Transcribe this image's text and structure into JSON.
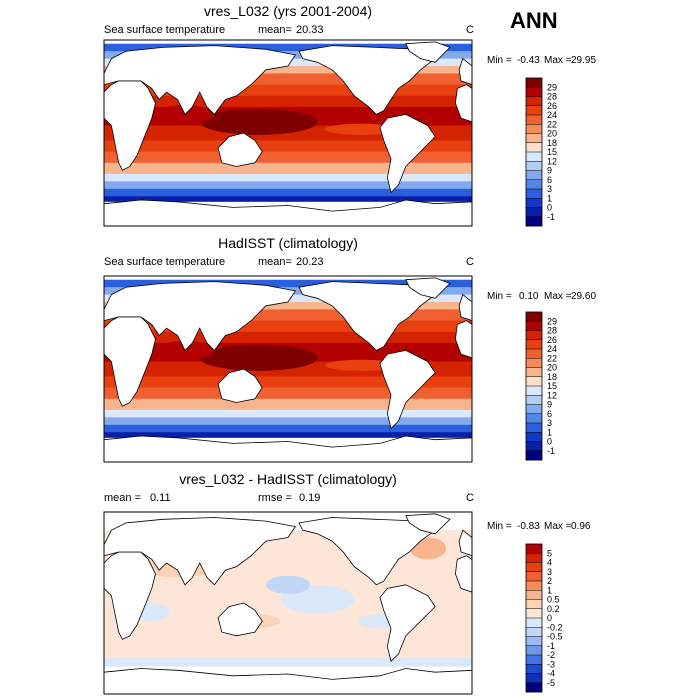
{
  "season": "ANN",
  "panels": [
    {
      "title": "vres_L032 (yrs 2001-2004)",
      "left_label": "Sea surface temperature",
      "mean_label": "mean=",
      "mean_value": "20.33",
      "units": "C",
      "min_label": "Min =",
      "min_value": "-0.43",
      "max_label": "Max =",
      "max_value": "29.95",
      "levels": [
        "29",
        "28",
        "26",
        "24",
        "22",
        "20",
        "18",
        "15",
        "12",
        "9",
        "6",
        "3",
        "1",
        "0",
        "-1"
      ],
      "colors": [
        "#7f0000",
        "#b30000",
        "#d52200",
        "#e8400f",
        "#f06030",
        "#f58a5c",
        "#f8b48c",
        "#fbe0cc",
        "#dbe8fa",
        "#b3cdf5",
        "#84aaee",
        "#5485e6",
        "#2a5fdd",
        "#1238c9",
        "#0a1fa8",
        "#000080"
      ]
    },
    {
      "title": "HadISST (climatology)",
      "left_label": "Sea surface temperature",
      "mean_label": "mean=",
      "mean_value": "20.23",
      "units": "C",
      "min_label": "Min =",
      "min_value": "0.10",
      "max_label": "Max =",
      "max_value": "29.60",
      "levels": [
        "29",
        "28",
        "26",
        "24",
        "22",
        "20",
        "18",
        "15",
        "12",
        "9",
        "6",
        "3",
        "1",
        "0",
        "-1"
      ],
      "colors": [
        "#7f0000",
        "#b30000",
        "#d52200",
        "#e8400f",
        "#f06030",
        "#f58a5c",
        "#f8b48c",
        "#fbe0cc",
        "#dbe8fa",
        "#b3cdf5",
        "#84aaee",
        "#5485e6",
        "#2a5fdd",
        "#1238c9",
        "#0a1fa8",
        "#000080"
      ]
    },
    {
      "title": "vres_L032 - HadISST (climatology)",
      "left_label": "mean =",
      "left_value": "0.11",
      "mean_label": "rmse =",
      "mean_value": "0.19",
      "units": "C",
      "min_label": "Min =",
      "min_value": "-0.83",
      "max_label": "Max =",
      "max_value": "0.96",
      "levels": [
        "5",
        "4",
        "3",
        "2",
        "1",
        "0.5",
        "0.2",
        "0",
        "-0.2",
        "-0.5",
        "-1",
        "-2",
        "-3",
        "-4",
        "-5"
      ],
      "colors": [
        "#b30000",
        "#d52200",
        "#e8400f",
        "#f06030",
        "#f58a5c",
        "#f8b48c",
        "#fbd2b6",
        "#fde6d8",
        "#dbe8fa",
        "#c2d6f7",
        "#9bbbf1",
        "#6f98ea",
        "#4472e2",
        "#1f4bd3",
        "#1030b8",
        "#000080"
      ]
    }
  ],
  "chart_data": [
    {
      "type": "heatmap",
      "title": "vres_L032 (yrs 2001-2004)",
      "subtitle": "Sea surface temperature",
      "mean": 20.33,
      "units": "C",
      "min": -0.43,
      "max": 29.95,
      "contour_levels": [
        -1,
        0,
        1,
        3,
        6,
        9,
        12,
        15,
        18,
        20,
        22,
        24,
        26,
        28,
        29
      ]
    },
    {
      "type": "heatmap",
      "title": "HadISST (climatology)",
      "subtitle": "Sea surface temperature",
      "mean": 20.23,
      "units": "C",
      "min": 0.1,
      "max": 29.6,
      "contour_levels": [
        -1,
        0,
        1,
        3,
        6,
        9,
        12,
        15,
        18,
        20,
        22,
        24,
        26,
        28,
        29
      ]
    },
    {
      "type": "heatmap",
      "title": "vres_L032 - HadISST (climatology)",
      "mean": 0.11,
      "rmse": 0.19,
      "units": "C",
      "min": -0.83,
      "max": 0.96,
      "contour_levels": [
        -5,
        -4,
        -3,
        -2,
        -1,
        -0.5,
        -0.2,
        0,
        0.2,
        0.5,
        1,
        2,
        3,
        4,
        5
      ]
    }
  ]
}
